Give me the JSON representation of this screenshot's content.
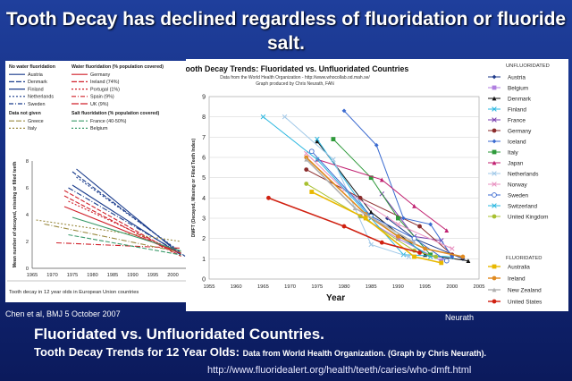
{
  "slide": {
    "title": "Tooth Decay has declined regardless of fluoridation or fluoride salt.",
    "left_source": "Chen et al, BMJ 5 October 2007",
    "right_source": "Neurath",
    "bottom_title": "Fluoridated vs. Unfluoridated Countries.",
    "bottom_subtitle": "Tooth Decay Trends for 12 Year Olds:",
    "bottom_note": "Data from World Health Organization. (Graph by Chris Neurath).",
    "url": "http://www.fluoridealert.org/health/teeth/caries/who-dmft.html"
  },
  "chart_data": [
    {
      "type": "line",
      "title": "",
      "caption": "Tooth decay in 12 year olds in European Union countries",
      "ylabel": "Mean number of decayed, missing or filled teeth",
      "xlim": [
        1965,
        2005
      ],
      "ylim": [
        0,
        8
      ],
      "xticks": [
        1965,
        1970,
        1975,
        1980,
        1985,
        1990,
        1995,
        2000,
        2005
      ],
      "yticks": [
        0,
        2,
        4,
        6,
        8
      ],
      "legend_groups": [
        {
          "heading": "No water fluoridation",
          "entries": [
            "Austria",
            "Denmark",
            "Finland",
            "Netherlands",
            "Sweden"
          ]
        },
        {
          "heading": "Water fluoridation (% population covered)",
          "entries": [
            "Germany",
            "Ireland (74%)",
            "Portugal (1%)",
            "Spain (9%)",
            "UK (9%)"
          ]
        },
        {
          "heading": "Data not given",
          "entries": [
            "Greece",
            "Italy"
          ]
        },
        {
          "heading": "Salt fluoridation (% population covered)",
          "entries": [
            "France (40-50%)",
            "Belgium"
          ]
        }
      ],
      "series": [
        {
          "name": "Austria",
          "color": "#1a3c8c",
          "x": [
            1975,
            2002
          ],
          "y": [
            6.2,
            1.0
          ]
        },
        {
          "name": "Denmark",
          "color": "#1a3c8c",
          "x": [
            1975,
            2003
          ],
          "y": [
            7.2,
            0.9
          ]
        },
        {
          "name": "Finland",
          "color": "#1a3c8c",
          "x": [
            1976,
            2002
          ],
          "y": [
            6.8,
            1.2
          ]
        },
        {
          "name": "Netherlands",
          "color": "#1a3c8c",
          "x": [
            1974,
            2002
          ],
          "y": [
            6.0,
            1.1
          ]
        },
        {
          "name": "Sweden",
          "color": "#1a3c8c",
          "x": [
            1976,
            2002
          ],
          "y": [
            7.4,
            1.0
          ]
        },
        {
          "name": "Germany",
          "color": "#d0202a",
          "x": [
            1973,
            2000
          ],
          "y": [
            5.4,
            1.2
          ]
        },
        {
          "name": "Ireland (74%)",
          "color": "#d0202a",
          "x": [
            1974,
            2002
          ],
          "y": [
            5.0,
            1.1
          ]
        },
        {
          "name": "Portugal (1%)",
          "color": "#d0202a",
          "x": [
            1971,
            2002
          ],
          "y": [
            1.9,
            1.5
          ]
        },
        {
          "name": "Spain (9%)",
          "color": "#d0202a",
          "x": [
            1973,
            2002
          ],
          "y": [
            4.6,
            1.1
          ]
        },
        {
          "name": "UK (9%)",
          "color": "#d0202a",
          "x": [
            1973,
            2002
          ],
          "y": [
            5.8,
            0.9
          ]
        },
        {
          "name": "Greece",
          "color": "#9a8a40",
          "x": [
            1966,
            2002
          ],
          "y": [
            3.6,
            2.0
          ]
        },
        {
          "name": "Italy",
          "color": "#9a8a40",
          "x": [
            1968,
            2002
          ],
          "y": [
            3.3,
            1.2
          ]
        },
        {
          "name": "France (40-50%)",
          "color": "#3a9a6a",
          "x": [
            1975,
            2002
          ],
          "y": [
            3.8,
            1.3
          ]
        },
        {
          "name": "Belgium",
          "color": "#3a9a6a",
          "x": [
            1974,
            2002
          ],
          "y": [
            2.5,
            1.0
          ]
        }
      ]
    },
    {
      "type": "line",
      "title": "Tooth Decay Trends:  Fluoridated vs. Unfluoridated Countries",
      "subtitle1": "Data from the World Health Organization - http://www.whocollab.od.mah.se/",
      "subtitle2": "Graph produced by Chris Neurath, FAN",
      "xlabel": "Year",
      "ylabel": "DMFT (Decayed, Missing or Filled Teeth Index)",
      "xlim": [
        1955,
        2005
      ],
      "ylim": [
        0,
        9
      ],
      "xticks": [
        1955,
        1960,
        1965,
        1970,
        1975,
        1980,
        1985,
        1990,
        1995,
        2000,
        2005
      ],
      "yticks": [
        0,
        1,
        2,
        3,
        4,
        5,
        6,
        7,
        8,
        9
      ],
      "legend_headings": {
        "unfluoridated": "UNFLUORIDATED",
        "fluoridated": "FLUORIDATED"
      },
      "series": [
        {
          "name": "Austria",
          "group": "unfluoridated",
          "color": "#1e3a8a",
          "marker": "diamond",
          "x": [
            1988,
            1993,
            2002
          ],
          "y": [
            3.0,
            2.0,
            1.0
          ]
        },
        {
          "name": "Belgium",
          "group": "unfluoridated",
          "color": "#b07fe0",
          "marker": "square",
          "x": [
            1983,
            1990,
            1998
          ],
          "y": [
            3.1,
            2.0,
            0.9
          ]
        },
        {
          "name": "Denmark",
          "group": "unfluoridated",
          "color": "#111111",
          "marker": "triangle",
          "x": [
            1975,
            1985,
            1995,
            2003
          ],
          "y": [
            6.8,
            3.3,
            1.2,
            0.9
          ]
        },
        {
          "name": "Finland",
          "group": "unfluoridated",
          "color": "#2ab7e0",
          "marker": "x",
          "x": [
            1975,
            1985,
            1991,
            2000
          ],
          "y": [
            6.9,
            3.0,
            1.2,
            1.1
          ]
        },
        {
          "name": "France",
          "group": "unfluoridated",
          "color": "#7a3fb0",
          "marker": "x",
          "x": [
            1987,
            1993,
            1998
          ],
          "y": [
            4.2,
            2.1,
            1.9
          ]
        },
        {
          "name": "Germany",
          "group": "unfluoridated",
          "color": "#8b2c2c",
          "marker": "circle",
          "x": [
            1973,
            1983,
            1994,
            2000
          ],
          "y": [
            5.4,
            4.0,
            2.6,
            1.2
          ]
        },
        {
          "name": "Iceland",
          "group": "unfluoridated",
          "color": "#3a6ad0",
          "marker": "diamond",
          "x": [
            1980,
            1986,
            1991,
            1996,
            2000
          ],
          "y": [
            8.3,
            6.6,
            3.0,
            2.7,
            1.1
          ]
        },
        {
          "name": "Italy",
          "group": "unfluoridated",
          "color": "#2e9a3a",
          "marker": "square",
          "x": [
            1978,
            1985,
            1990,
            1996
          ],
          "y": [
            6.9,
            5.0,
            3.0,
            1.2
          ]
        },
        {
          "name": "Japan",
          "group": "unfluoridated",
          "color": "#c02070",
          "marker": "triangle",
          "x": [
            1975,
            1987,
            1993,
            1999
          ],
          "y": [
            5.9,
            4.9,
            3.6,
            2.4
          ]
        },
        {
          "name": "Netherlands",
          "group": "unfluoridated",
          "color": "#a0c8e8",
          "marker": "x",
          "x": [
            1969,
            1978,
            1985,
            1992
          ],
          "y": [
            8.0,
            5.9,
            1.7,
            1.1
          ]
        },
        {
          "name": "Norway",
          "group": "unfluoridated",
          "color": "#e890c0",
          "marker": "x",
          "x": [
            1973,
            1980,
            1990,
            2000
          ],
          "y": [
            6.2,
            4.4,
            2.7,
            1.5
          ]
        },
        {
          "name": "Sweden",
          "group": "unfluoridated",
          "color": "#3a6ad0",
          "marker": "circle-open",
          "x": [
            1974,
            1985,
            1993,
            1999
          ],
          "y": [
            6.3,
            3.1,
            2.0,
            0.9
          ]
        },
        {
          "name": "Switzerland",
          "group": "unfluoridated",
          "color": "#2ab7e0",
          "marker": "x",
          "x": [
            1965,
            1975,
            1985,
            1996
          ],
          "y": [
            8.0,
            5.9,
            3.0,
            1.1
          ]
        },
        {
          "name": "United Kingdom",
          "group": "unfluoridated",
          "color": "#a8c030",
          "marker": "circle",
          "x": [
            1973,
            1983,
            1993,
            1997
          ],
          "y": [
            4.7,
            3.1,
            1.4,
            1.1
          ]
        },
        {
          "name": "Australia",
          "group": "fluoridated",
          "color": "#e8b800",
          "marker": "square",
          "x": [
            1974,
            1984,
            1993,
            1998
          ],
          "y": [
            4.3,
            3.0,
            1.1,
            0.8
          ]
        },
        {
          "name": "Ireland",
          "group": "fluoridated",
          "color": "#e08a20",
          "marker": "circle",
          "x": [
            1973,
            1984,
            1990,
            1995,
            2002
          ],
          "y": [
            6.0,
            3.2,
            2.1,
            1.5,
            1.1
          ]
        },
        {
          "name": "New Zealand",
          "group": "fluoridated",
          "color": "#b0b0b0",
          "marker": "triangle",
          "x": [
            1973,
            1982,
            1993
          ],
          "y": [
            5.9,
            3.5,
            1.8
          ]
        },
        {
          "name": "United States",
          "group": "fluoridated",
          "color": "#d02010",
          "marker": "circle",
          "x": [
            1966,
            1980,
            1987,
            1994
          ],
          "y": [
            4.0,
            2.6,
            1.8,
            1.3
          ]
        }
      ]
    }
  ]
}
